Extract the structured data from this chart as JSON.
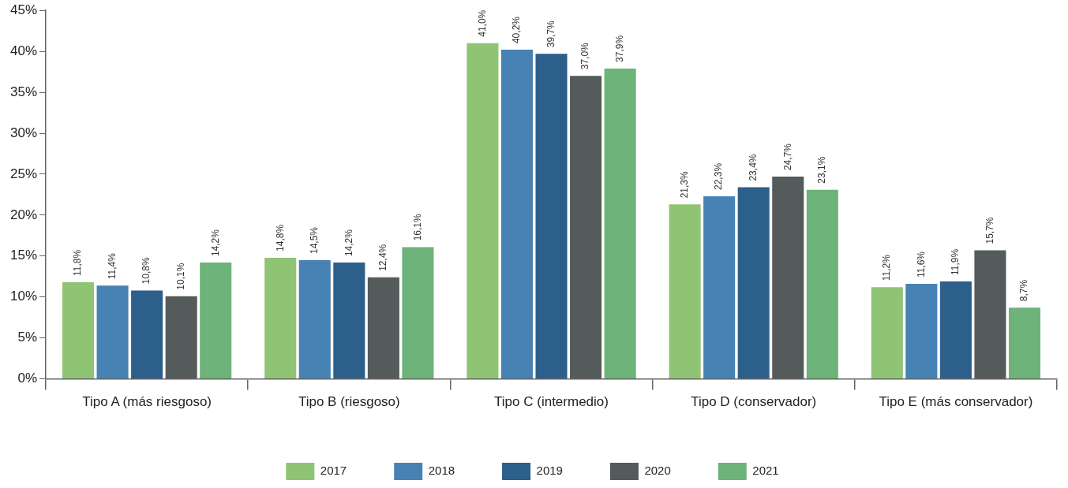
{
  "chart_data": {
    "type": "bar",
    "categories": [
      "Tipo A (más riesgoso)",
      "Tipo B (riesgoso)",
      "Tipo C (intermedio)",
      "Tipo D (conservador)",
      "Tipo E (más conservador)"
    ],
    "series": [
      {
        "name": "2017",
        "color": "#8fc474",
        "values": [
          11.8,
          14.8,
          41.0,
          21.3,
          11.2
        ],
        "value_labels": [
          "11,8%",
          "14,8%",
          "41,0%",
          "21,3%",
          "11,2%"
        ]
      },
      {
        "name": "2018",
        "color": "#4682b4",
        "values": [
          11.4,
          14.5,
          40.2,
          22.3,
          11.6
        ],
        "value_labels": [
          "11,4%",
          "14,5%",
          "40,2%",
          "22,3%",
          "11,6%"
        ]
      },
      {
        "name": "2019",
        "color": "#2c5f8a",
        "values": [
          10.8,
          14.2,
          39.7,
          23.4,
          11.9
        ],
        "value_labels": [
          "10,8%",
          "14,2%",
          "39,7%",
          "23,4%",
          "11,9%"
        ]
      },
      {
        "name": "2020",
        "color": "#555b5a",
        "values": [
          10.1,
          12.4,
          37.0,
          24.7,
          15.7
        ],
        "value_labels": [
          "10,1%",
          "12,4%",
          "37,0%",
          "24,7%",
          "15,7%"
        ]
      },
      {
        "name": "2021",
        "color": "#6db37a",
        "values": [
          14.2,
          16.1,
          37.9,
          23.1,
          8.7
        ],
        "value_labels": [
          "14,2%",
          "16,1%",
          "37,9%",
          "23,1%",
          "8,7%"
        ]
      }
    ],
    "ylim": [
      0,
      45
    ],
    "yticks": [
      {
        "value": 0,
        "label": "0%"
      },
      {
        "value": 5,
        "label": "5%"
      },
      {
        "value": 10,
        "label": "10%"
      },
      {
        "value": 15,
        "label": "15%"
      },
      {
        "value": 20,
        "label": "20%"
      },
      {
        "value": 25,
        "label": "25%"
      },
      {
        "value": 30,
        "label": "30%"
      },
      {
        "value": 35,
        "label": "35%"
      },
      {
        "value": 40,
        "label": "40%"
      },
      {
        "value": 45,
        "label": "45%"
      }
    ],
    "legend": "bottom"
  }
}
